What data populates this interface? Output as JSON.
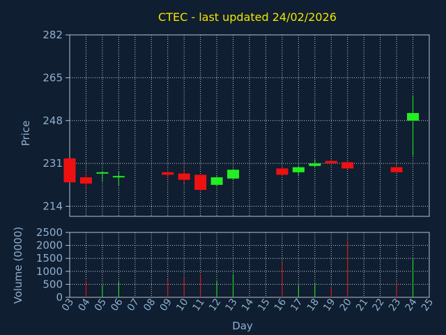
{
  "chart_data": {
    "type": "candlestick",
    "title": "CTEC - last updated 24/02/2026",
    "xlabel": "Day",
    "x_ticks": [
      "03",
      "04",
      "05",
      "06",
      "07",
      "08",
      "09",
      "10",
      "11",
      "12",
      "13",
      "14",
      "15",
      "16",
      "17",
      "18",
      "19",
      "20",
      "21",
      "22",
      "23",
      "24",
      "25"
    ],
    "colors": {
      "up": "#22ee22",
      "down": "#ee1111",
      "background": "#0f1e30",
      "title": "#f2e600",
      "axis_text": "#8fb0d0"
    },
    "price_panel": {
      "ylabel": "Price",
      "ylim": [
        210,
        282
      ],
      "y_ticks": [
        214,
        231,
        248,
        265,
        282
      ],
      "grid": true
    },
    "volume_panel": {
      "ylabel": "Volume (0000)",
      "ylim": [
        0,
        2500
      ],
      "y_ticks": [
        0,
        500,
        1000,
        1500,
        2000,
        2500
      ],
      "grid": true
    },
    "candles": [
      {
        "day": "03",
        "open": 233.0,
        "high": 233.0,
        "low": 223.5,
        "close": 223.5,
        "volume": null
      },
      {
        "day": "04",
        "open": 225.5,
        "high": 227.5,
        "low": 221.5,
        "close": 223.0,
        "volume": 650
      },
      {
        "day": "05",
        "open": 227.0,
        "high": 228.0,
        "low": 224.0,
        "close": 227.5,
        "volume": 450
      },
      {
        "day": "06",
        "open": 226.0,
        "high": 228.0,
        "low": 222.0,
        "close": 226.0,
        "volume": 600
      },
      {
        "day": "09",
        "open": 227.5,
        "high": 228.0,
        "low": 225.0,
        "close": 226.5,
        "volume": 700
      },
      {
        "day": "10",
        "open": 227.0,
        "high": 229.0,
        "low": 223.0,
        "close": 224.5,
        "volume": 800
      },
      {
        "day": "11",
        "open": 226.5,
        "high": 226.5,
        "low": 220.0,
        "close": 220.5,
        "volume": 900
      },
      {
        "day": "12",
        "open": 222.5,
        "high": 226.0,
        "low": 222.0,
        "close": 225.5,
        "volume": 650
      },
      {
        "day": "13",
        "open": 225.0,
        "high": 229.0,
        "low": 224.5,
        "close": 228.5,
        "volume": 900
      },
      {
        "day": "16",
        "open": 229.0,
        "high": 229.5,
        "low": 226.0,
        "close": 226.5,
        "volume": 1350
      },
      {
        "day": "17",
        "open": 227.5,
        "high": 230.0,
        "low": 226.0,
        "close": 229.5,
        "volume": 450
      },
      {
        "day": "18",
        "open": 230.0,
        "high": 232.5,
        "low": 229.5,
        "close": 231.0,
        "volume": 550
      },
      {
        "day": "19",
        "open": 232.0,
        "high": 232.5,
        "low": 231.0,
        "close": 231.0,
        "volume": 400
      },
      {
        "day": "20",
        "open": 231.5,
        "high": 231.5,
        "low": 229.0,
        "close": 229.0,
        "volume": 2200
      },
      {
        "day": "23",
        "open": 229.5,
        "high": 230.0,
        "low": 227.5,
        "close": 227.5,
        "volume": 600
      },
      {
        "day": "24",
        "open": 248.0,
        "high": 258.0,
        "low": 234.0,
        "close": 251.0,
        "volume": 1500
      }
    ]
  }
}
